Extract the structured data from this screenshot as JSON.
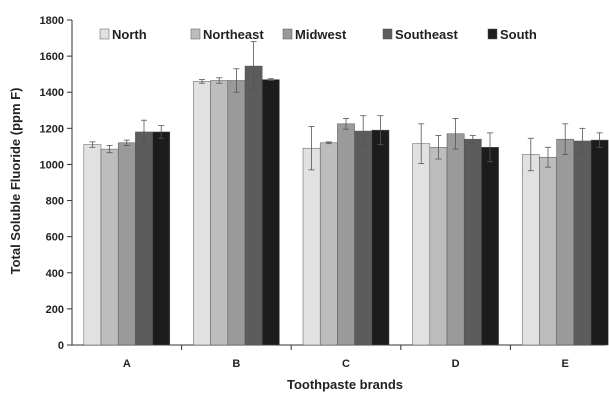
{
  "chart_data": {
    "type": "bar",
    "categories": [
      "A",
      "B",
      "C",
      "D",
      "E"
    ],
    "series": [
      {
        "name": "North",
        "color": "#e1e1e1",
        "values": [
          1110,
          1460,
          1090,
          1115,
          1055
        ],
        "errors": [
          15,
          10,
          120,
          110,
          90
        ]
      },
      {
        "name": "Northeast",
        "color": "#bdbdbd",
        "values": [
          1085,
          1465,
          1120,
          1095,
          1040
        ],
        "errors": [
          20,
          15,
          5,
          65,
          55
        ]
      },
      {
        "name": "Midwest",
        "color": "#9a9a9a",
        "values": [
          1120,
          1465,
          1225,
          1170,
          1140
        ],
        "errors": [
          15,
          65,
          30,
          85,
          85
        ]
      },
      {
        "name": "Southeast",
        "color": "#5c5c5c",
        "values": [
          1180,
          1545,
          1185,
          1140,
          1130
        ],
        "errors": [
          65,
          135,
          85,
          20,
          70
        ]
      },
      {
        "name": "South",
        "color": "#1c1c1c",
        "values": [
          1180,
          1470,
          1190,
          1095,
          1135
        ],
        "errors": [
          35,
          5,
          80,
          80,
          40
        ]
      }
    ],
    "ylim": [
      0,
      1800
    ],
    "yticks": [
      "0",
      "200",
      "400",
      "600",
      "800",
      "1000",
      "1200",
      "1400",
      "1600",
      "1800"
    ],
    "ylabel": "Total Soluble Fluoride (ppm F)",
    "xlabel": "Toothpaste brands",
    "legend_position": "top",
    "grid": false
  }
}
